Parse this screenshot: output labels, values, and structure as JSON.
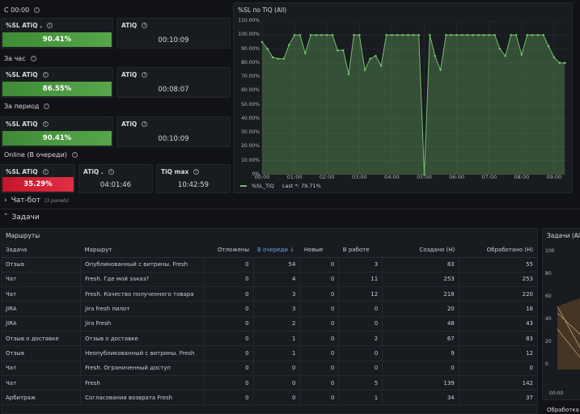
{
  "sections": {
    "current": "С 00:00",
    "hour": "За час",
    "period": "За период",
    "online": "Online (В очереди)"
  },
  "stats": {
    "row1": {
      "sl_title": "%SL ATiQ .",
      "sl_value": "90.41%",
      "atiq_title": "ATiQ",
      "atiq_value": "00:10:09"
    },
    "row2": {
      "sl_title": "%SL ATiQ",
      "sl_value": "86.55%",
      "atiq_title": "ATiQ",
      "atiq_value": "00:08:07"
    },
    "row3": {
      "sl_title": "%SL ATiQ",
      "sl_value": "90.41%",
      "atiq_title": "ATiQ",
      "atiq_value": "00:10:09"
    },
    "row4": {
      "sl_title": "%SL ATiQ",
      "sl_value": "35.29%",
      "atiq_title": "ATiQ .",
      "atiq_value": "04:01:46",
      "max_title": "TiQ max",
      "max_value": "10:42:59"
    }
  },
  "colors": {
    "green": "#56a64b",
    "red": "#e02f44",
    "line": "#73bf69"
  },
  "chatbot": {
    "label": "Чат-бот",
    "panels": "(3 panels)"
  },
  "tasks": {
    "label": "Задачи"
  },
  "table": {
    "title": "Маршруты",
    "columns": [
      "Задача",
      "Маршрут",
      "Отложены",
      "В очереди ↓",
      "Новые",
      "В работе",
      "Создано (Н)",
      "Обработано (Н)"
    ],
    "rows": [
      [
        "Отзыв",
        "Опубликованный с витрины. Fresh",
        "0",
        "54",
        "0",
        "3",
        "83",
        "55"
      ],
      [
        "Чат",
        "Fresh. Где мой заказ?",
        "0",
        "4",
        "0",
        "11",
        "253",
        "253"
      ],
      [
        "Чат",
        "Fresh. Качество полученного товара",
        "0",
        "3",
        "0",
        "12",
        "218",
        "220"
      ],
      [
        "JIRA",
        "Jira fresh пилот",
        "0",
        "3",
        "0",
        "0",
        "20",
        "18"
      ],
      [
        "JIRA",
        "Jira Fresh",
        "0",
        "2",
        "0",
        "0",
        "48",
        "43"
      ],
      [
        "Отзыв о доставке",
        "Отзыв о доставке",
        "0",
        "1",
        "0",
        "2",
        "67",
        "83"
      ],
      [
        "Отзыв",
        "Неопубликованный с витрины. Fresh",
        "0",
        "1",
        "0",
        "0",
        "9",
        "12"
      ],
      [
        "Чат",
        "Fresh. Ограниченный доступ",
        "0",
        "0",
        "0",
        "0",
        "0",
        "0"
      ],
      [
        "Чат",
        "Fresh",
        "0",
        "0",
        "0",
        "5",
        "139",
        "142"
      ],
      [
        "Арбитраж",
        "Согласования возврата Fresh",
        "0",
        "0",
        "0",
        "1",
        "34",
        "37"
      ]
    ]
  },
  "side_panel": {
    "title": "Задачи (All",
    "y_ticks": [
      "100",
      "80",
      "60",
      "40",
      "20",
      "0"
    ],
    "x_tick": "00:00",
    "bottom_title": "Обработка"
  },
  "chart_data": {
    "type": "line",
    "title": "%SL по TiQ (All)",
    "y_ticks": [
      "110.00%",
      "100.00%",
      "90.00%",
      "80.00%",
      "70.00%",
      "60.00%",
      "50.00%",
      "40.00%",
      "30.00%",
      "20.00%",
      "10.00%",
      "0%"
    ],
    "x_ticks": [
      "00:00",
      "01:00",
      "02:00",
      "03:00",
      "04:00",
      "05:00",
      "06:00",
      "07:00",
      "08:00",
      "09:00"
    ],
    "ylim": [
      0,
      110
    ],
    "xlim": [
      0,
      9.4
    ],
    "grid": true,
    "legend": "bottom-left",
    "series": [
      {
        "name": "%SL_TiQ",
        "legend_extra": "Last *: 79.71%",
        "x": [
          0,
          0.17,
          0.33,
          0.5,
          0.67,
          0.83,
          1,
          1.17,
          1.33,
          1.5,
          1.67,
          1.83,
          2,
          2.17,
          2.33,
          2.5,
          2.67,
          2.83,
          3,
          3.17,
          3.33,
          3.5,
          3.67,
          3.83,
          4,
          4.17,
          4.33,
          4.5,
          4.67,
          4.83,
          5,
          5.17,
          5.33,
          5.5,
          5.67,
          5.83,
          6,
          6.17,
          6.33,
          6.5,
          6.67,
          6.83,
          7,
          7.17,
          7.33,
          7.5,
          7.67,
          7.83,
          8,
          8.17,
          8.33,
          8.5,
          8.67,
          8.83,
          9,
          9.17,
          9.33
        ],
        "y": [
          95,
          90,
          84,
          83,
          83,
          93,
          100,
          100,
          87,
          100,
          100,
          100,
          100,
          100,
          89,
          89,
          72,
          100,
          100,
          75,
          83,
          85,
          78,
          100,
          100,
          100,
          100,
          100,
          100,
          100,
          0,
          100,
          85,
          75,
          100,
          100,
          100,
          100,
          100,
          100,
          100,
          100,
          100,
          100,
          90,
          85,
          100,
          100,
          86,
          100,
          100,
          100,
          100,
          92,
          84,
          80,
          80
        ]
      }
    ]
  }
}
